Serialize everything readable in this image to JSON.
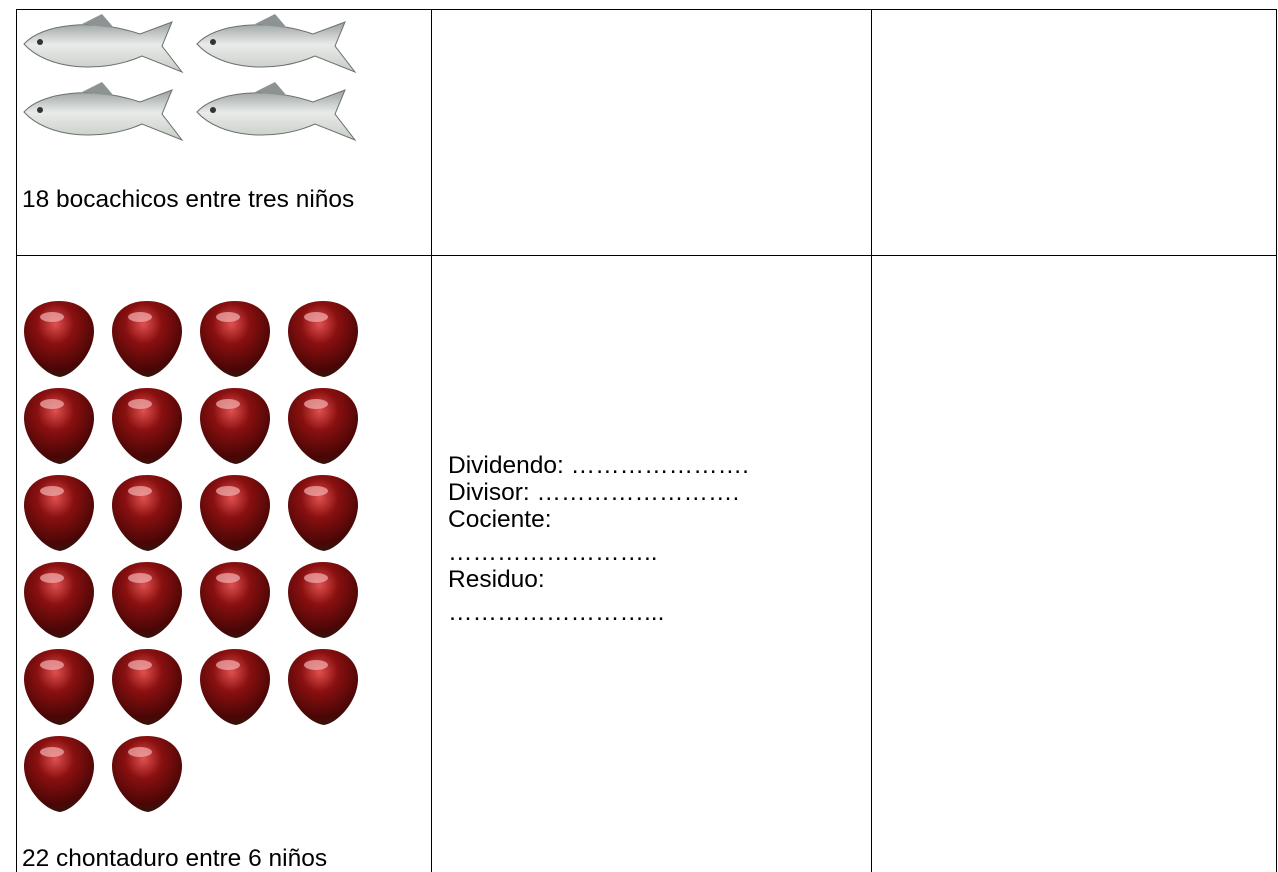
{
  "table": {
    "rows": [
      {
        "cells": [
          {
            "caption": "18 bocachicos entre tres niños"
          }
        ]
      },
      {
        "cells": [
          {
            "caption": "22 chontaduro entre 6 niños"
          },
          {
            "lines": [
              "Dividendo: ………………….",
              "Divisor: …………………….",
              "Cociente:",
              "……………………..",
              "Residuo:",
              "……………………..."
            ]
          }
        ]
      }
    ]
  }
}
